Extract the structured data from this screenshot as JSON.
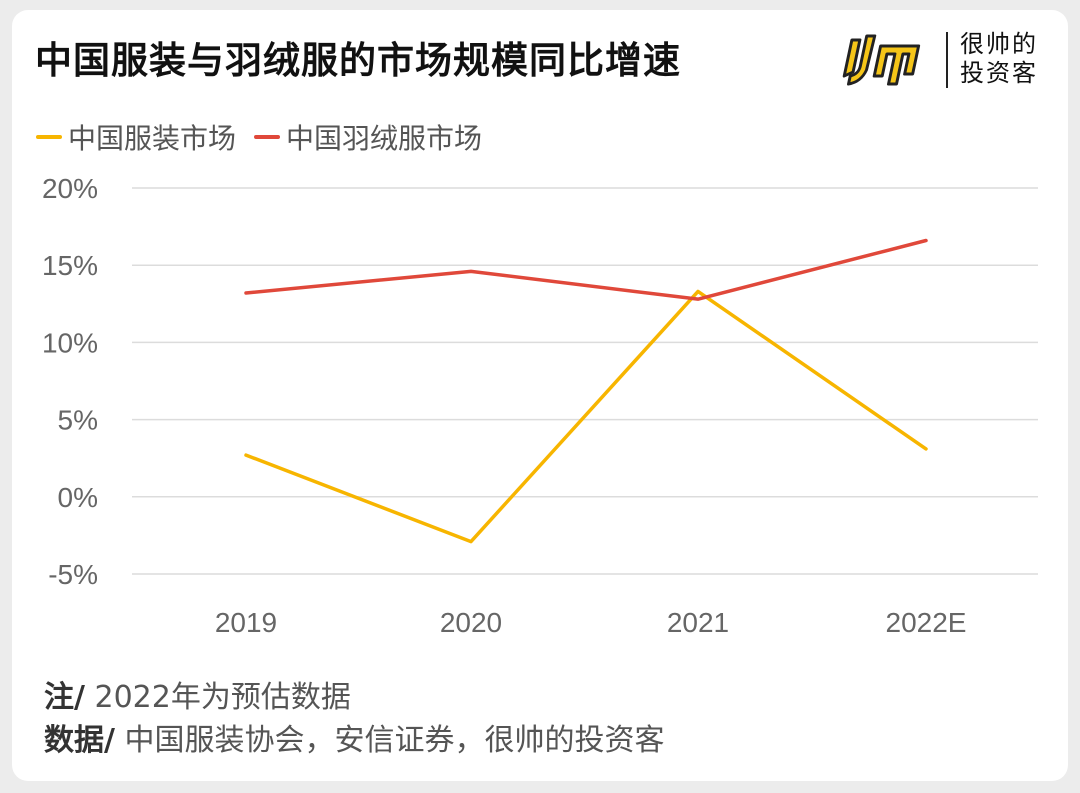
{
  "title": "中国服装与羽绒服的市场规模同比增速",
  "logo": {
    "line1": "很帅的",
    "line2": "投资客",
    "mark_color": "#f5c518"
  },
  "notes": {
    "note_lead": "注/",
    "note_text": " 2022年为预估数据",
    "source_lead": "数据/",
    "source_text": " 中国服装协会，安信证券，很帅的投资客"
  },
  "chart_data": {
    "type": "line",
    "categories": [
      "2019",
      "2020",
      "2021",
      "2022E"
    ],
    "series": [
      {
        "name": "中国服装市场",
        "color": "#f7b500",
        "values": [
          2.7,
          -2.9,
          13.3,
          3.1
        ]
      },
      {
        "name": "中国羽绒服市场",
        "color": "#e0483a",
        "values": [
          13.2,
          14.6,
          12.8,
          16.6
        ]
      }
    ],
    "y_ticks": [
      20,
      15,
      10,
      5,
      0,
      -5
    ],
    "y_tick_labels": [
      "20%",
      "15%",
      "10%",
      "5%",
      "0%",
      "-5%"
    ],
    "ylim": [
      -5,
      20
    ],
    "grid": true,
    "legend_position": "top-left"
  }
}
